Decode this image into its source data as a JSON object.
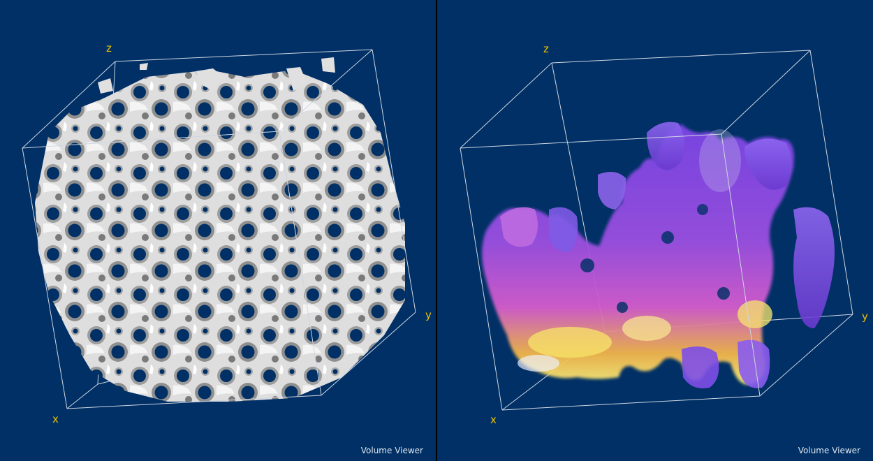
{
  "colors": {
    "background": "#003065",
    "axis_label": "#f2c200",
    "box_line": "#cfd6e2",
    "isosurface": "#e4e4e4",
    "volume_low": "#7a40e0",
    "volume_mid": "#d85ad0",
    "volume_high": "#f6e04a"
  },
  "views": [
    {
      "render_mode": "isosurface",
      "axes": {
        "x": "x",
        "y": "y",
        "z": "z"
      },
      "viewer_label": "Volume Viewer"
    },
    {
      "render_mode": "volume-rendering",
      "axes": {
        "x": "x",
        "y": "y",
        "z": "z"
      },
      "viewer_label": "Volume Viewer"
    }
  ]
}
